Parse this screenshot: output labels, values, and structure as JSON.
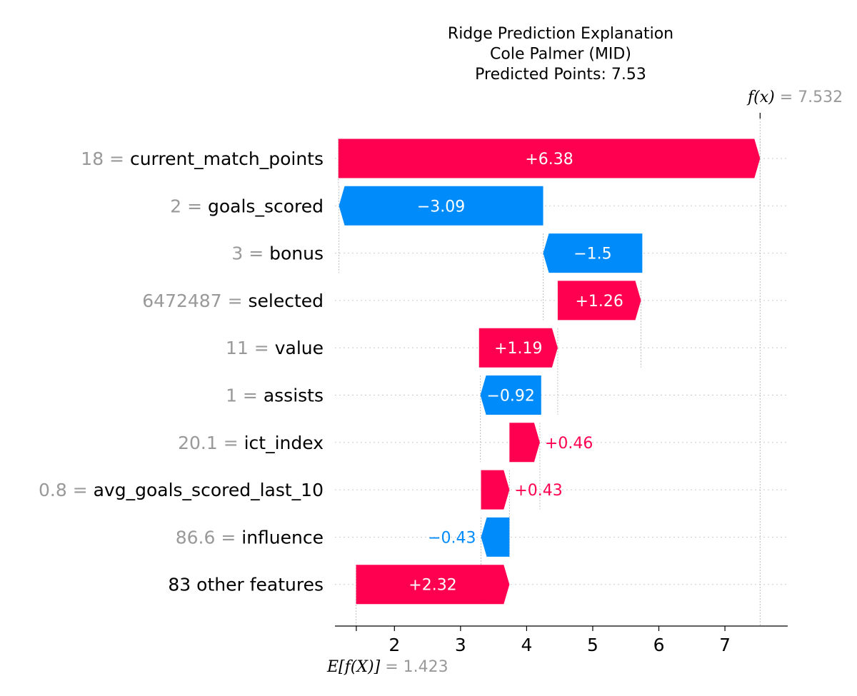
{
  "chart_data": {
    "type": "waterfall",
    "title_lines": [
      "Ridge Prediction Explanation",
      "Cole Palmer (MID)",
      "Predicted Points: 7.53"
    ],
    "base_value": 1.423,
    "base_value_label": "1.423",
    "base_label_math": "E[f(X)]",
    "output_value": 7.532,
    "output_value_label": "7.532",
    "output_label_math": "f(x)",
    "xlim": [
      1.1,
      7.95
    ],
    "xticks": [
      2,
      3,
      4,
      5,
      6,
      7
    ],
    "tick_labels": [
      "2",
      "3",
      "4",
      "5",
      "6",
      "7"
    ],
    "colors": {
      "positive": "#ff0051",
      "negative": "#008bfb",
      "muted": "#999999",
      "grid": "#cccccc"
    },
    "features": [
      {
        "value": "18",
        "name": "current_match_points",
        "contribution": 6.38,
        "label": "+6.38",
        "start": 1.152
      },
      {
        "value": "2",
        "name": "goals_scored",
        "contribution": -3.09,
        "label": "−3.09",
        "start": 4.25
      },
      {
        "value": "3",
        "name": "bonus",
        "contribution": -1.5,
        "label": "−1.5",
        "start": 5.75
      },
      {
        "value": "6472487",
        "name": "selected",
        "contribution": 1.26,
        "label": "+1.26",
        "start": 4.47
      },
      {
        "value": "11",
        "name": "value",
        "contribution": 1.19,
        "label": "+1.19",
        "start": 3.28
      },
      {
        "value": "1",
        "name": "assists",
        "contribution": -0.92,
        "label": "−0.92",
        "start": 4.22
      },
      {
        "value": "20.1",
        "name": "ict_index",
        "contribution": 0.46,
        "label": "+0.46",
        "start": 3.74
      },
      {
        "value": "0.8",
        "name": "avg_goals_scored_last_10",
        "contribution": 0.43,
        "label": "+0.43",
        "start": 3.31
      },
      {
        "value": "86.6",
        "name": "influence",
        "contribution": -0.43,
        "label": "−0.43",
        "start": 3.74
      },
      {
        "value": "",
        "name": "83 other features",
        "contribution": 2.32,
        "label": "+2.32",
        "start": 1.42
      }
    ]
  }
}
